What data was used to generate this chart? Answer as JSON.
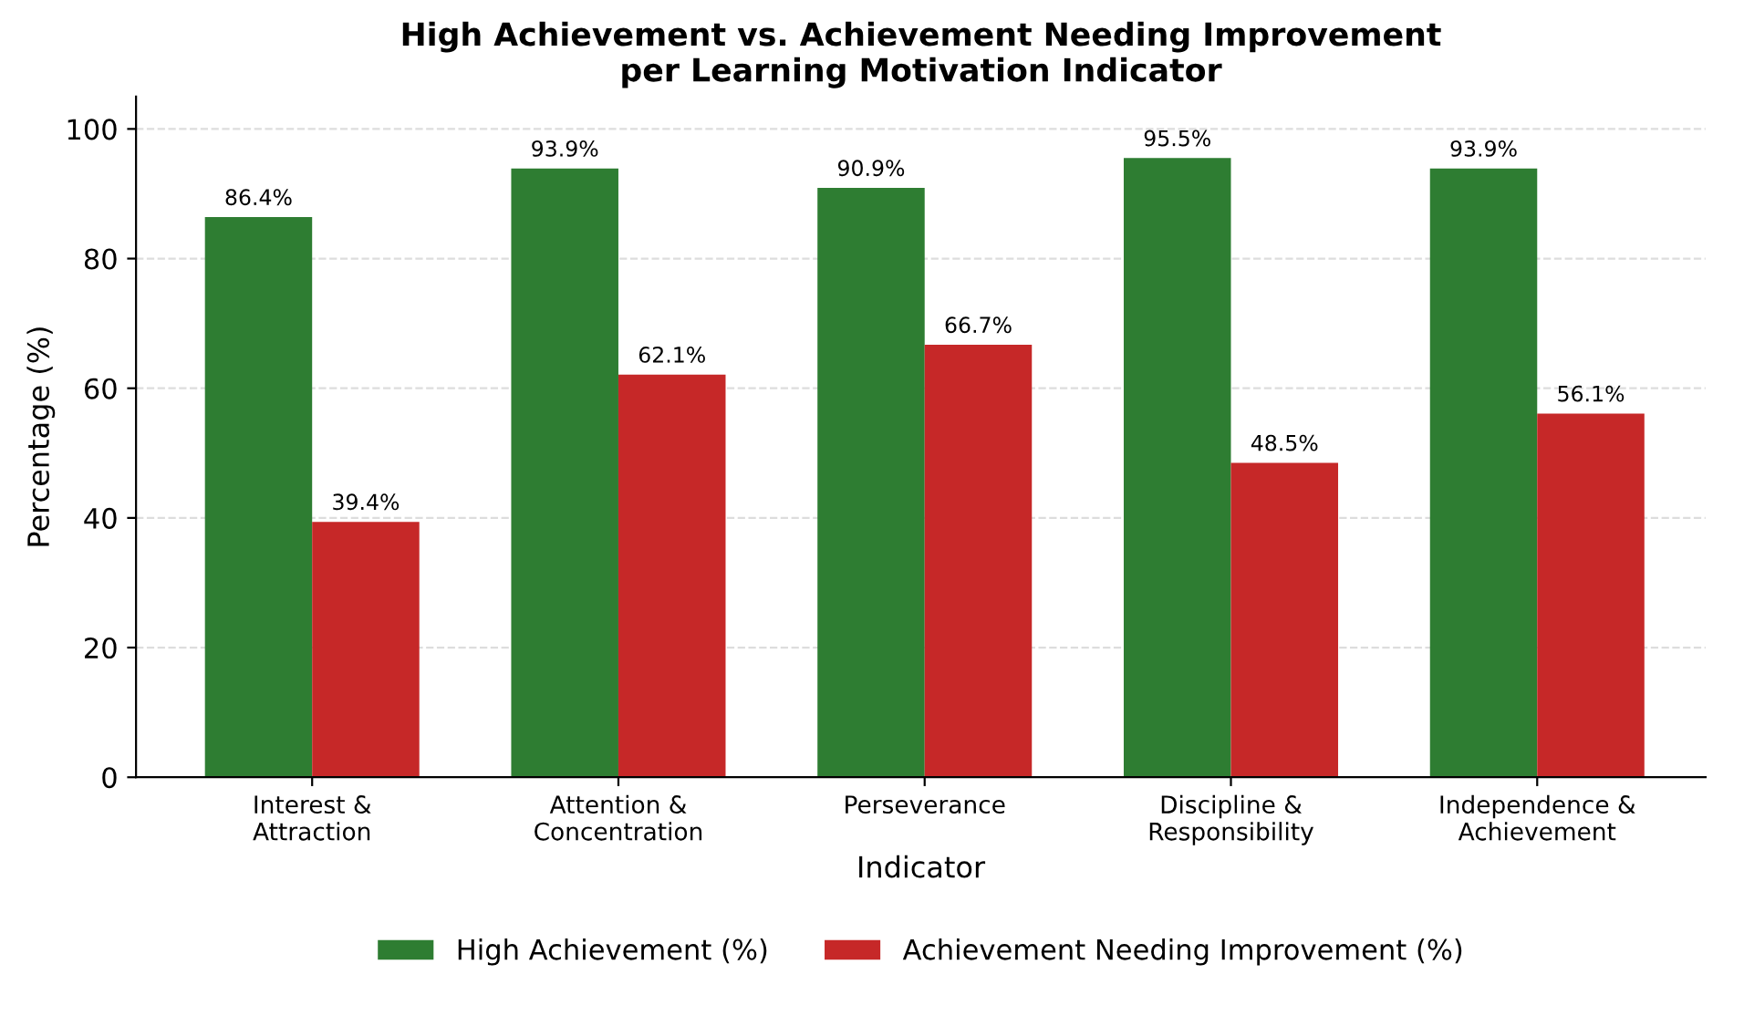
{
  "chart_data": {
    "type": "bar",
    "title": "High Achievement vs. Achievement Needing Improvement\nper Learning Motivation Indicator",
    "xlabel": "Indicator",
    "ylabel": "Percentage (%)",
    "categories": [
      "Interest &\nAttraction",
      "Attention &\nConcentration",
      "Perseverance",
      "Discipline &\nResponsibility",
      "Independence &\nAchievement"
    ],
    "series": [
      {
        "name": "High Achievement (%)",
        "color": "#2e7d32",
        "values": [
          86.4,
          93.9,
          90.9,
          95.5,
          93.9
        ],
        "value_labels": [
          "86.4%",
          "93.9%",
          "90.9%",
          "95.5%",
          "93.9%"
        ]
      },
      {
        "name": "Achievement Needing Improvement (%)",
        "color": "#c62828",
        "values": [
          39.4,
          62.1,
          66.7,
          48.5,
          56.1
        ],
        "value_labels": [
          "39.4%",
          "62.1%",
          "66.7%",
          "48.5%",
          "56.1%"
        ]
      }
    ],
    "ylim": [
      0,
      105
    ],
    "yticks": [
      0,
      20,
      40,
      60,
      80,
      100
    ],
    "grid": "y",
    "legend": "bottom"
  }
}
